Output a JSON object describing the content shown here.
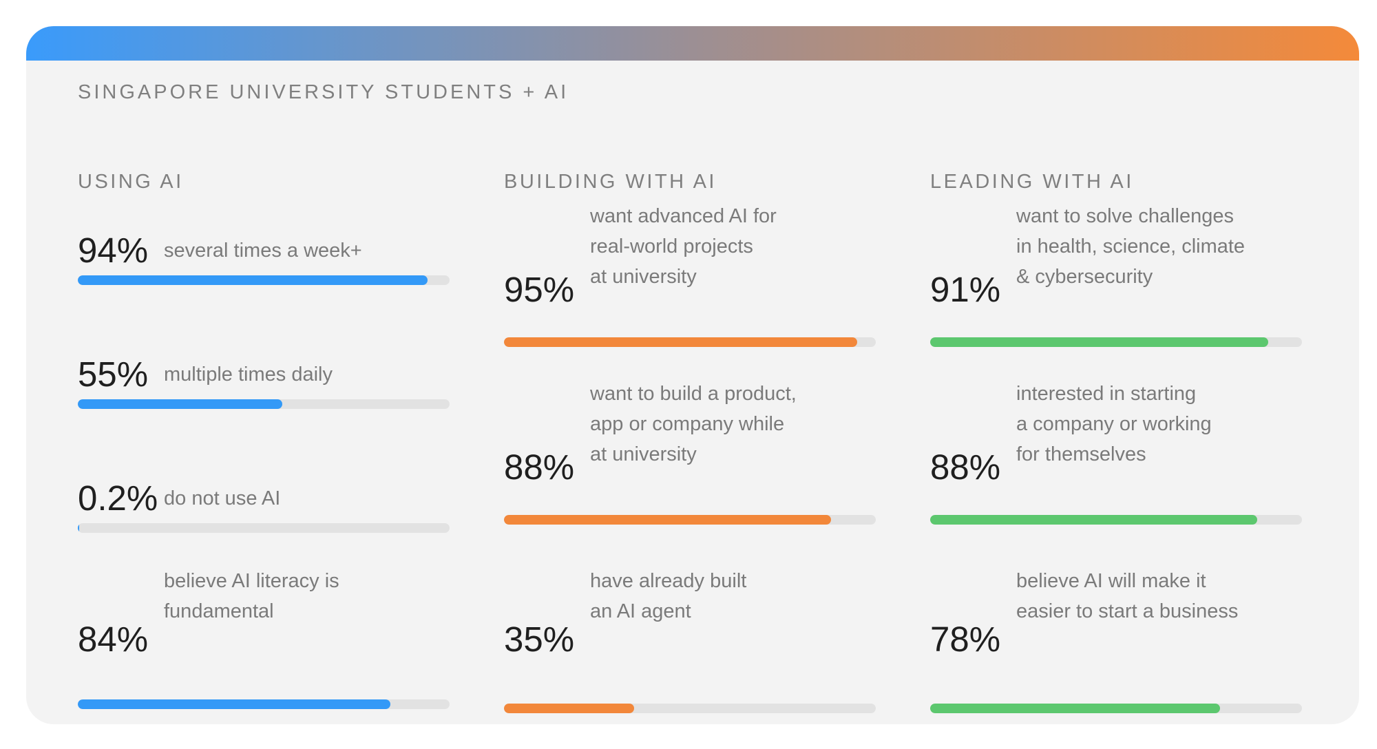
{
  "title": "SINGAPORE UNIVERSITY STUDENTS + AI",
  "colors": {
    "gradient_start": "#3a9bfb",
    "gradient_end": "#f48a3a",
    "using": "#3399f7",
    "building": "#f2873a",
    "leading": "#5cc76e",
    "track": "#e2e2e2"
  },
  "chart_data": {
    "type": "bar",
    "title": "SINGAPORE UNIVERSITY STUDENTS + AI",
    "xlim": [
      0,
      100
    ],
    "columns": [
      {
        "heading": "USING AI",
        "color": "#3399f7",
        "items": [
          {
            "label": "94%",
            "value": 94,
            "desc": [
              "several times a week+"
            ]
          },
          {
            "label": "55%",
            "value": 55,
            "desc": [
              "multiple times daily"
            ]
          },
          {
            "label": "0.2%",
            "value": 0.2,
            "desc": [
              "do not use AI"
            ]
          },
          {
            "label": "84%",
            "value": 84,
            "desc": [
              "believe AI literacy is",
              "fundamental"
            ]
          }
        ]
      },
      {
        "heading": "BUILDING WITH AI",
        "color": "#f2873a",
        "items": [
          {
            "label": "95%",
            "value": 95,
            "desc": [
              "want advanced AI for",
              "real-world projects",
              "at university"
            ]
          },
          {
            "label": "88%",
            "value": 88,
            "desc": [
              "want to build a product,",
              "app or company while",
              "at university"
            ]
          },
          {
            "label": "35%",
            "value": 35,
            "desc": [
              "have already built",
              "an AI agent"
            ]
          }
        ]
      },
      {
        "heading": "LEADING WITH AI",
        "color": "#5cc76e",
        "items": [
          {
            "label": "91%",
            "value": 91,
            "desc": [
              "want to solve challenges",
              "in health, science, climate",
              "& cybersecurity"
            ]
          },
          {
            "label": "88%",
            "value": 88,
            "desc": [
              "interested in starting",
              "a company or working",
              "for themselves"
            ]
          },
          {
            "label": "78%",
            "value": 78,
            "desc": [
              "believe AI will make it",
              "easier to start a business"
            ]
          }
        ]
      }
    ]
  }
}
